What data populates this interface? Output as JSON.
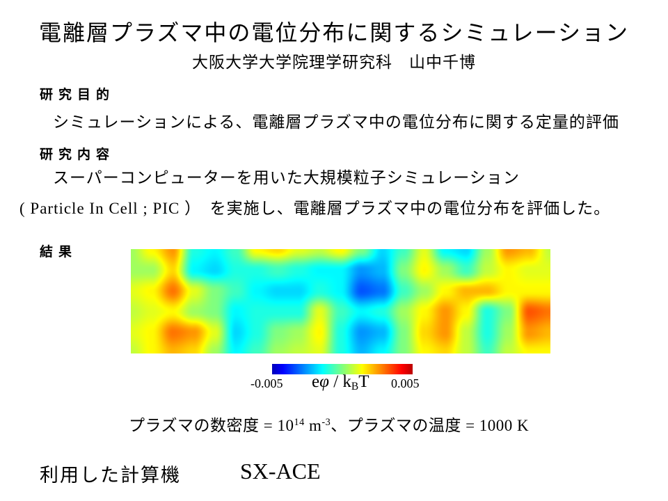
{
  "slide": {
    "title": "電離層プラズマ中の電位分布に関するシミュレーション",
    "subtitle": "大阪大学大学院理学研究科　山中千博",
    "purpose": {
      "heading": "研究目的",
      "body": "シミュレーションによる、電離層プラズマ中の電位分布に関する定量的評価"
    },
    "content": {
      "heading": "研究内容",
      "line1": "スーパーコンピューターを用いた大規模粒子シミュレーション",
      "line2": "( Particle In Cell ; PIC ）　を実施し、電離層プラズマ中の電位分布を評価した。"
    },
    "result": {
      "heading": "結果"
    },
    "colorbar": {
      "min_label": "-0.005",
      "max_label": "0.005",
      "label_e": "e",
      "label_phi": "φ",
      "label_mid": " / k",
      "label_sub": "B",
      "label_end": "T"
    },
    "params": {
      "part1": "プラズマの数密度 = 10",
      "sup1": "14",
      "part2": " m",
      "sup2": "-3",
      "part3": "、プラズマの温度 = 1000 K"
    },
    "footer": {
      "machine_label": "利用した計算機",
      "machine_name": "SX-ACE"
    },
    "colors": {
      "text": "#000000",
      "background": "#ffffff"
    }
  },
  "chart_data": {
    "type": "heatmap",
    "title": "",
    "xlabel": "",
    "ylabel": "",
    "description": "Smooth 2D field of normalized electric potential eφ/kBT in ionospheric plasma from a PIC simulation, rendered with a jet colormap (blue = -0.005, green = 0, red = +0.005). Values below are estimated control points on a 21x6 grid (units of 0.001).",
    "colormap": "jet",
    "legend_position": "bottom colorbar",
    "colorbar_range": [
      -0.005,
      0.005
    ],
    "colorbar_label": "eφ / kBT",
    "colorbar_tick_labels": [
      "-0.005",
      "0.005"
    ],
    "value_scale": 0.001,
    "grid_rows": 6,
    "grid_cols": 21,
    "values_millis": [
      [
        0.5,
        2.0,
        3.5,
        -1.5,
        -2.0,
        -1.0,
        2.0,
        2.5,
        1.5,
        1.0,
        2.0,
        0.0,
        -2.5,
        -1.0,
        1.5,
        -2.0,
        -2.5,
        0.5,
        3.5,
        3.0,
        1.0
      ],
      [
        0.5,
        0.5,
        2.5,
        -2.0,
        -2.5,
        -1.5,
        -1.5,
        -1.0,
        -1.5,
        -2.0,
        -2.0,
        -3.5,
        -3.0,
        0.0,
        2.0,
        0.5,
        -1.0,
        1.0,
        2.0,
        1.5,
        1.5
      ],
      [
        1.5,
        2.0,
        4.0,
        1.5,
        0.0,
        -1.0,
        -2.0,
        -2.5,
        -2.5,
        -1.5,
        -2.0,
        -4.5,
        -4.0,
        -1.0,
        0.5,
        2.0,
        3.0,
        3.0,
        2.0,
        2.0,
        2.0
      ],
      [
        1.0,
        1.5,
        2.0,
        0.5,
        0.0,
        -2.0,
        -1.5,
        -1.5,
        -1.5,
        1.5,
        -1.0,
        -2.0,
        -1.5,
        0.5,
        2.0,
        3.5,
        2.0,
        -1.5,
        0.0,
        4.5,
        4.0
      ],
      [
        1.5,
        2.0,
        4.0,
        3.5,
        1.5,
        -2.5,
        -1.5,
        0.0,
        0.5,
        2.0,
        -1.5,
        -3.5,
        -3.0,
        0.0,
        2.5,
        3.5,
        1.0,
        -1.5,
        0.5,
        3.5,
        3.0
      ],
      [
        1.0,
        2.0,
        3.0,
        2.5,
        0.5,
        -2.0,
        -1.0,
        0.5,
        1.0,
        1.5,
        -1.5,
        -3.0,
        -2.0,
        0.0,
        2.0,
        2.5,
        1.0,
        -1.0,
        1.0,
        2.0,
        2.0
      ]
    ]
  }
}
